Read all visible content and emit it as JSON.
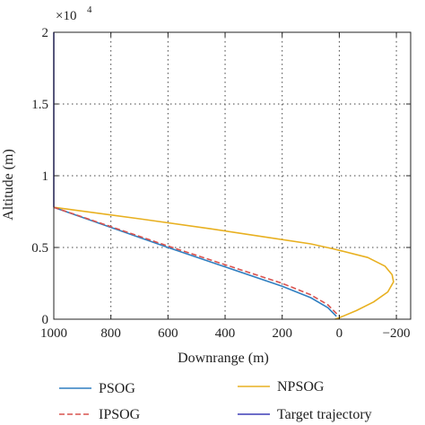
{
  "chart_data": {
    "type": "line",
    "xlabel": "Downrange (m)",
    "ylabel": "Altitude (m)",
    "xlim": [
      1000,
      -250
    ],
    "ylim": [
      0,
      20000
    ],
    "x_reversed": true,
    "xticks": [
      1000,
      800,
      600,
      400,
      200,
      0,
      -200
    ],
    "xtick_labels": [
      "1000",
      "800",
      "600",
      "400",
      "200",
      "0",
      "−200"
    ],
    "yticks": [
      0,
      5000,
      10000,
      15000,
      20000
    ],
    "ytick_labels": [
      "0",
      "0.5",
      "1",
      "1.5",
      "2"
    ],
    "y_multiplier_base": "×10",
    "y_multiplier_exp": "4",
    "grid": true,
    "legend_position": "bottom",
    "series": [
      {
        "name": "Target trajectory",
        "color": "#3d3db5",
        "x": [
          1000,
          1000
        ],
        "y": [
          20000,
          7800
        ]
      },
      {
        "name": "NPSOG",
        "color": "#e8b020",
        "x": [
          1000,
          700,
          450,
          250,
          100,
          20,
          -100,
          -160,
          -185,
          -190,
          -170,
          -120,
          -60,
          0,
          15
        ],
        "y": [
          7800,
          7000,
          6300,
          5700,
          5250,
          4900,
          4300,
          3700,
          3100,
          2600,
          1900,
          1200,
          600,
          100,
          0
        ]
      },
      {
        "name": "PSOG",
        "color": "#2f7fc1",
        "x": [
          1000,
          800,
          600,
          400,
          200,
          100,
          40,
          10
        ],
        "y": [
          7800,
          6400,
          5000,
          3650,
          2300,
          1500,
          800,
          200
        ]
      },
      {
        "name": "IPSOG",
        "color": "#d9534f",
        "dashed": true,
        "x": [
          1000,
          800,
          600,
          400,
          200,
          100,
          40,
          5
        ],
        "y": [
          7800,
          6450,
          5100,
          3800,
          2500,
          1700,
          1000,
          300
        ]
      }
    ]
  }
}
